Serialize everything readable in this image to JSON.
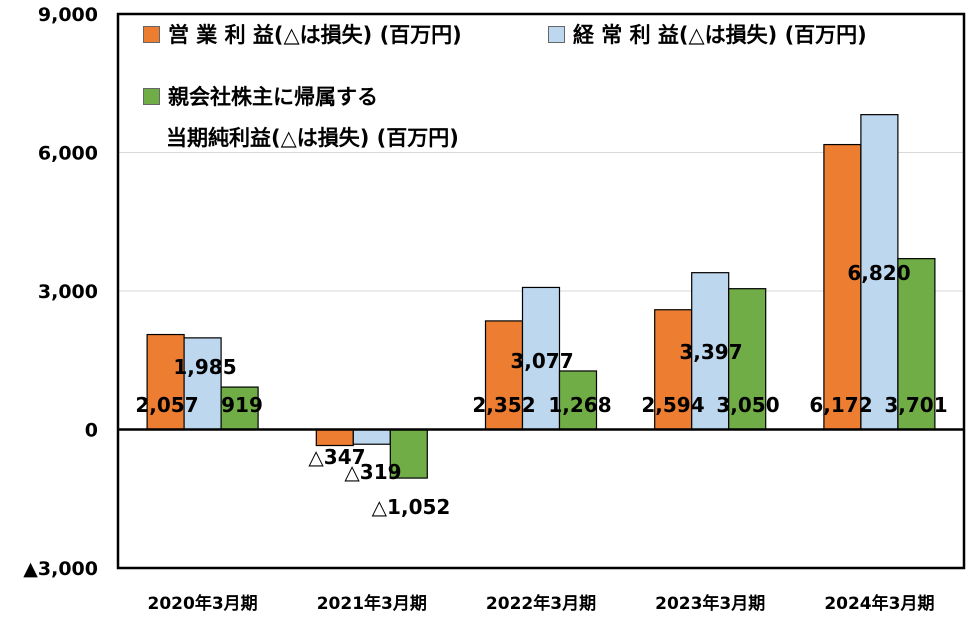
{
  "chart_data": {
    "type": "bar",
    "categories": [
      "2020年3月期",
      "2021年3月期",
      "2022年3月期",
      "2023年3月期",
      "2024年3月期"
    ],
    "series": [
      {
        "name": "営 業 利 益(△は損失) (百万円)",
        "color": "#ED7D31",
        "values": [
          2057,
          -347,
          2352,
          2594,
          6172
        ],
        "labels": [
          "2,057",
          "△347",
          "2,352",
          "2,594",
          "6,172"
        ]
      },
      {
        "name": "経 常 利 益(△は損失) (百万円)",
        "color": "#BDD7EE",
        "values": [
          1985,
          -319,
          3077,
          3397,
          6820
        ],
        "labels": [
          "1,985",
          "△319",
          "3,077",
          "3,397",
          "6,820"
        ]
      },
      {
        "name": "親会社株主に帰属する当期純利益(△は損失) (百万円)",
        "color": "#70AD47",
        "values": [
          919,
          -1052,
          1268,
          3050,
          3701
        ],
        "labels": [
          "919",
          "△1,052",
          "1,268",
          "3,050",
          "3,701"
        ]
      }
    ],
    "legend_lines": {
      "s1": "営 業 利 益(△は損失) (百万円)",
      "s2": "経 常 利 益(△は損失) (百万円)",
      "s3_line1": "親会社株主に帰属する",
      "s3_line2": "当期純利益(△は損失) (百万円)"
    },
    "ylim": [
      -3000,
      9000
    ],
    "yticks": [
      9000,
      6000,
      3000,
      0,
      -3000
    ],
    "ytick_labels": [
      "9,000",
      "6,000",
      "3,000",
      "0",
      "▲3,000"
    ],
    "grid": true,
    "legend_position": "top"
  }
}
